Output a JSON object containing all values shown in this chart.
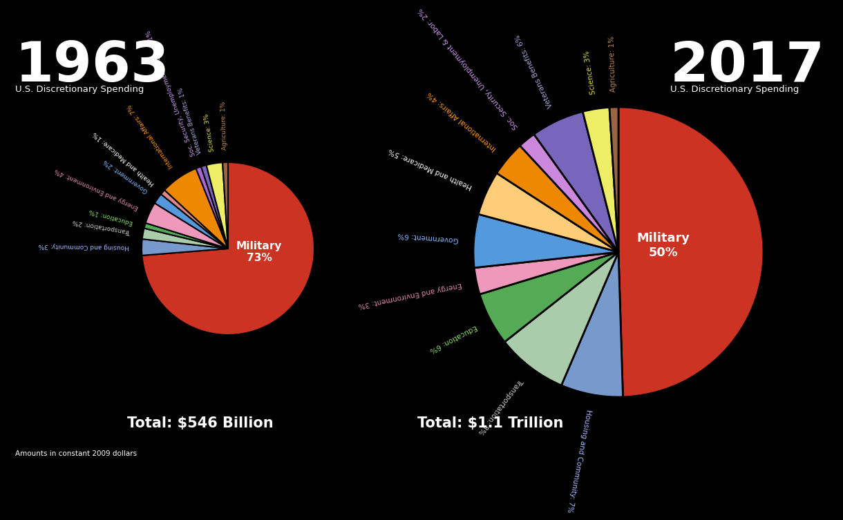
{
  "bg_color": "#000000",
  "left": {
    "year": "1963",
    "subtitle": "U.S. Discretionary Spending",
    "total": "Total: $546 Billion",
    "slices": [
      {
        "label": "Military",
        "pct": 73,
        "color": "#cc3322",
        "label_color": "#ffffff"
      },
      {
        "label": "Housing and Community: 3%",
        "pct": 3,
        "color": "#7799cc",
        "label_color": "#aabbff"
      },
      {
        "label": "Transportation: 2%",
        "pct": 2,
        "color": "#aaccaa",
        "label_color": "#cccccc"
      },
      {
        "label": "Education: 1%",
        "pct": 1,
        "color": "#55aa55",
        "label_color": "#88dd66"
      },
      {
        "label": "Energy and Environment: 4%",
        "pct": 4,
        "color": "#ee99bb",
        "label_color": "#dd88aa"
      },
      {
        "label": "Government: 2%",
        "pct": 2,
        "color": "#5599dd",
        "label_color": "#88bbff"
      },
      {
        "label": "Health and Medicare: 1%",
        "pct": 1,
        "color": "#dd8888",
        "label_color": "#ffffff"
      },
      {
        "label": "International Affairs: 7%",
        "pct": 7,
        "color": "#ee8800",
        "label_color": "#ff9900"
      },
      {
        "label": "Soc. Security, Unemployment & Labor: 1%",
        "pct": 1,
        "color": "#aa66cc",
        "label_color": "#cc99ee"
      },
      {
        "label": "Veterans Benefits: 1%",
        "pct": 1,
        "color": "#7766bb",
        "label_color": "#aaaadd"
      },
      {
        "label": "Science: 3%",
        "pct": 3,
        "color": "#eeee66",
        "label_color": "#dddd44"
      },
      {
        "label": "Agriculture: 1%",
        "pct": 1,
        "color": "#996644",
        "label_color": "#bb8855"
      }
    ]
  },
  "right": {
    "year": "2017",
    "subtitle": "U.S. Discretionary Spending",
    "total": "Total: $1.1 Trillion",
    "slices": [
      {
        "label": "Military",
        "pct": 50,
        "color": "#cc3322",
        "label_color": "#ffffff"
      },
      {
        "label": "Housing and Community: 7%",
        "pct": 7,
        "color": "#7799cc",
        "label_color": "#aabbff"
      },
      {
        "label": "Transportation: 8%",
        "pct": 8,
        "color": "#aaccaa",
        "label_color": "#cccccc"
      },
      {
        "label": "Education: 6%",
        "pct": 6,
        "color": "#55aa55",
        "label_color": "#88dd66"
      },
      {
        "label": "Energy and Environment: 3%",
        "pct": 3,
        "color": "#ee99bb",
        "label_color": "#dd88aa"
      },
      {
        "label": "Government: 6%",
        "pct": 6,
        "color": "#5599dd",
        "label_color": "#88bbff"
      },
      {
        "label": "Health and Medicare: 5%",
        "pct": 5,
        "color": "#ffcc77",
        "label_color": "#ffffff"
      },
      {
        "label": "International Affairs: 4%",
        "pct": 4,
        "color": "#ee8800",
        "label_color": "#ff9900"
      },
      {
        "label": "Soc. Security, Unemployment & Labor: 2%",
        "pct": 2,
        "color": "#cc88dd",
        "label_color": "#cc99ee"
      },
      {
        "label": "Veterans Benefits: 6%",
        "pct": 6,
        "color": "#7766bb",
        "label_color": "#aaaadd"
      },
      {
        "label": "Science: 3%",
        "pct": 3,
        "color": "#eeee66",
        "label_color": "#dddd44"
      },
      {
        "label": "Agriculture: 1%",
        "pct": 1,
        "color": "#996644",
        "label_color": "#bb8855"
      }
    ]
  },
  "footnote": "Amounts in constant 2009 dollars"
}
